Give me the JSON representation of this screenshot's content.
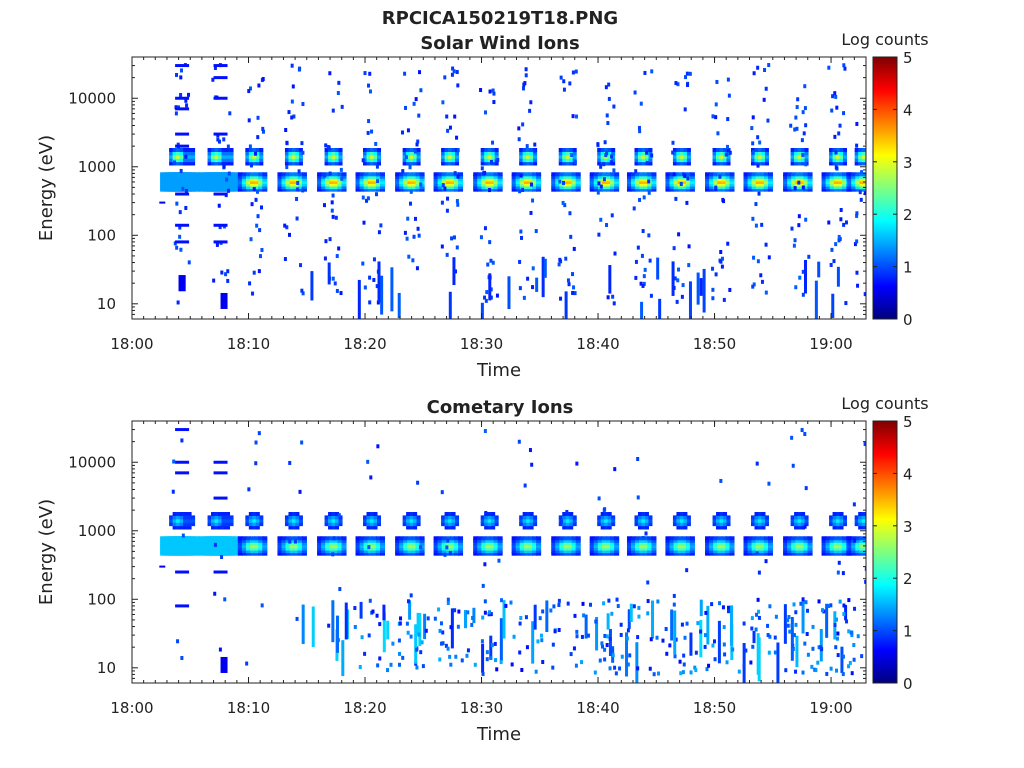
{
  "figure_title": "RPCICA150219T18.PNG",
  "colors": {
    "colormap": [
      "#00007f",
      "#0000ff",
      "#007fff",
      "#00ffff",
      "#7fff7f",
      "#ffff00",
      "#ff7f00",
      "#ff0000",
      "#7f0000"
    ],
    "axis": "#222222"
  },
  "chart_data": [
    {
      "type": "heatmap",
      "title": "Solar Wind Ions",
      "xlabel": "Time",
      "ylabel": "Energy (eV)",
      "colorbar_label": "Log counts",
      "x_range": [
        "18:00",
        "19:03"
      ],
      "y_range": [
        6,
        40000
      ],
      "y_scale": "log",
      "colorbar_range": [
        0,
        5
      ],
      "x_ticks": [
        "18:00",
        "18:10",
        "18:20",
        "18:30",
        "18:40",
        "18:50",
        "19:00"
      ],
      "y_ticks": [
        "10",
        "100",
        "1000",
        "10000"
      ],
      "colorbar_ticks": [
        "0",
        "1",
        "2",
        "3",
        "4",
        "5"
      ],
      "sweep_times_min": [
        4.3,
        7.6,
        10.5,
        13.9,
        17.3,
        20.6,
        24.0,
        27.3,
        30.7,
        34.0,
        37.4,
        40.7,
        43.9,
        47.2,
        50.6,
        53.9,
        57.3,
        60.6,
        62.8
      ],
      "main_peak": {
        "energy_eV": 600,
        "log_counts": 3.0
      },
      "secondary_peak": {
        "energy_eV": 1400,
        "log_counts": 2.4
      }
    },
    {
      "type": "heatmap",
      "title": "Cometary Ions",
      "xlabel": "Time",
      "ylabel": "Energy (eV)",
      "colorbar_label": "Log counts",
      "x_range": [
        "18:00",
        "19:03"
      ],
      "y_range": [
        6,
        40000
      ],
      "y_scale": "log",
      "colorbar_range": [
        0,
        5
      ],
      "x_ticks": [
        "18:00",
        "18:10",
        "18:20",
        "18:30",
        "18:40",
        "18:50",
        "19:00"
      ],
      "y_ticks": [
        "10",
        "100",
        "1000",
        "10000"
      ],
      "colorbar_ticks": [
        "0",
        "1",
        "2",
        "3",
        "4",
        "5"
      ],
      "sweep_times_min": [
        4.3,
        7.6,
        10.5,
        13.9,
        17.3,
        20.6,
        24.0,
        27.3,
        30.7,
        34.0,
        37.4,
        40.7,
        43.9,
        47.2,
        50.6,
        53.9,
        57.3,
        60.6,
        62.8
      ],
      "main_peak": {
        "energy_eV": 600,
        "log_counts": 2.1
      },
      "secondary_peak": {
        "energy_eV": 1400,
        "log_counts": 1.3
      },
      "low_energy_band": {
        "energy_range_eV": [
          8,
          100
        ],
        "log_counts": 1.0
      }
    }
  ]
}
